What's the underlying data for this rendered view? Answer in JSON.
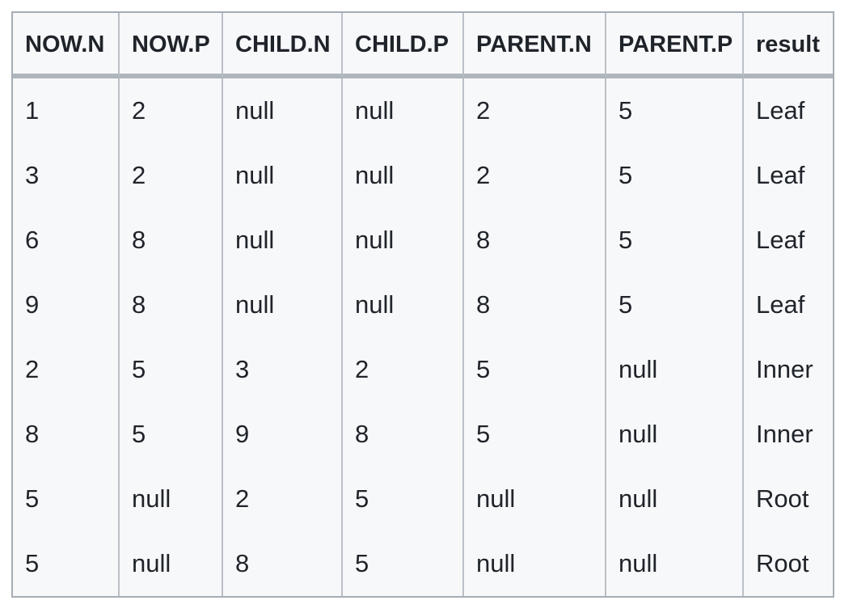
{
  "table": {
    "columns": [
      "NOW.N",
      "NOW.P",
      "CHILD.N",
      "CHILD.P",
      "PARENT.N",
      "PARENT.P",
      "result"
    ],
    "rows": [
      [
        "1",
        "2",
        "null",
        "null",
        "2",
        "5",
        "Leaf"
      ],
      [
        "3",
        "2",
        "null",
        "null",
        "2",
        "5",
        "Leaf"
      ],
      [
        "6",
        "8",
        "null",
        "null",
        "8",
        "5",
        "Leaf"
      ],
      [
        "9",
        "8",
        "null",
        "null",
        "8",
        "5",
        "Leaf"
      ],
      [
        "2",
        "5",
        "3",
        "2",
        "5",
        "null",
        "Inner"
      ],
      [
        "8",
        "5",
        "9",
        "8",
        "5",
        "null",
        "Inner"
      ],
      [
        "5",
        "null",
        "2",
        "5",
        "null",
        "null",
        "Root"
      ],
      [
        "5",
        "null",
        "8",
        "5",
        "null",
        "null",
        "Root"
      ]
    ]
  },
  "colors": {
    "page_background": "#ffffff",
    "table_background": "#f7f8f9",
    "outer_border": "#a6adb5",
    "column_border": "#bac0c7",
    "header_separator": "#aeb5bc",
    "text": "#1f242a"
  }
}
